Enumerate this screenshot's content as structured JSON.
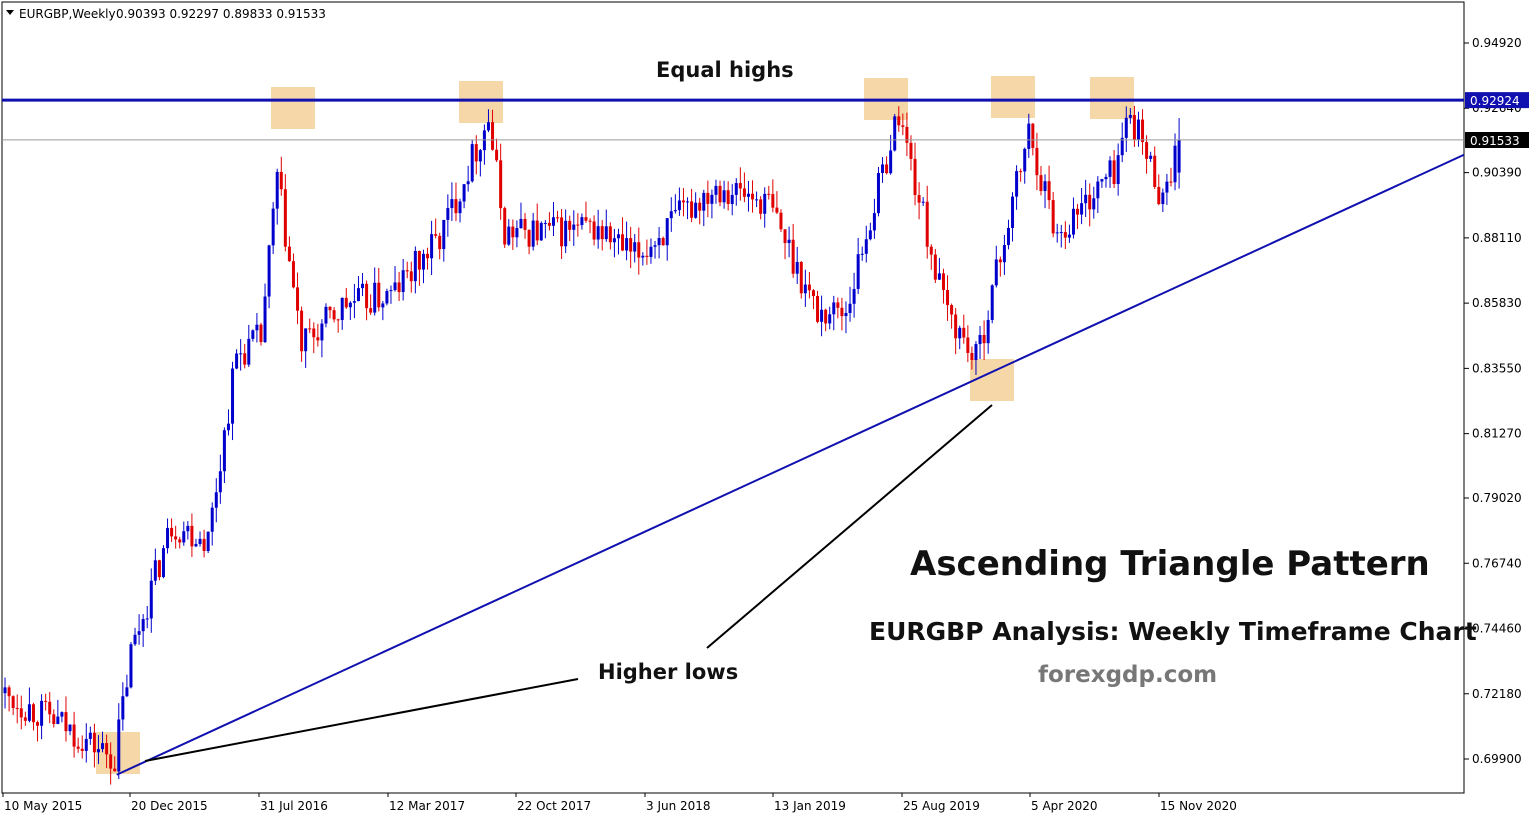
{
  "header": {
    "symbol_timeframe": "EURGBP,Weekly",
    "ohlc": "0.90393 0.92297 0.89833 0.91533"
  },
  "price_axis": {
    "ticks": [
      "0.94920",
      "0.92640",
      "0.90390",
      "0.88110",
      "0.85830",
      "0.83550",
      "0.81270",
      "0.79020",
      "0.76740",
      "0.74460",
      "0.72180",
      "0.69900"
    ],
    "resistance_label": "0.92924",
    "current_price_label": "0.91533"
  },
  "time_axis": {
    "ticks": [
      "10 May 2015",
      "20 Dec 2015",
      "31 Jul 2016",
      "12 Mar 2017",
      "22 Oct 2017",
      "3 Jun 2018",
      "13 Jan 2019",
      "25 Aug 2019",
      "5 Apr 2020",
      "15 Nov 2020"
    ]
  },
  "annotations": {
    "equal_highs": "Equal highs",
    "higher_lows": "Higher lows",
    "title": "Ascending Triangle Pattern",
    "subtitle": "EURGBP Analysis: Weekly Timeframe Chart",
    "site": "forexgdp.com"
  },
  "colors": {
    "bull": "#0000cc",
    "bear": "#e00000",
    "line": "#1010b0",
    "highlight": "#f6d7a7",
    "site": "#777777"
  },
  "chart_data": {
    "type": "candlestick",
    "symbol": "EURGBP",
    "timeframe": "Weekly",
    "last_bar": {
      "open": 0.90393,
      "high": 0.92297,
      "low": 0.89833,
      "close": 0.91533
    },
    "resistance": 0.92924,
    "current_price": 0.91533,
    "support_trendline": [
      {
        "date": "2015-11-22",
        "price": 0.6935
      },
      {
        "date": "2019-12-15",
        "price": 0.832
      }
    ],
    "ylim": [
      0.685,
      0.958
    ],
    "xlim": [
      "2015-05-10",
      "2021-03-15"
    ],
    "close_series": [
      {
        "date": "2015-05-10",
        "close": 0.722
      },
      {
        "date": "2015-08-23",
        "close": 0.711
      },
      {
        "date": "2015-11-22",
        "close": 0.699
      },
      {
        "date": "2015-12-20",
        "close": 0.736
      },
      {
        "date": "2016-02-28",
        "close": 0.781
      },
      {
        "date": "2016-05-01",
        "close": 0.776
      },
      {
        "date": "2016-06-19",
        "close": 0.84
      },
      {
        "date": "2016-07-31",
        "close": 0.846
      },
      {
        "date": "2016-08-28",
        "close": 0.902
      },
      {
        "date": "2016-10-09",
        "close": 0.843
      },
      {
        "date": "2016-12-25",
        "close": 0.858
      },
      {
        "date": "2017-03-12",
        "close": 0.861
      },
      {
        "date": "2017-06-04",
        "close": 0.881
      },
      {
        "date": "2017-08-27",
        "close": 0.923
      },
      {
        "date": "2017-09-24",
        "close": 0.883
      },
      {
        "date": "2018-03-04",
        "close": 0.884
      },
      {
        "date": "2018-05-06",
        "close": 0.874
      },
      {
        "date": "2018-09-23",
        "close": 0.9
      },
      {
        "date": "2018-12-23",
        "close": 0.893
      },
      {
        "date": "2019-03-17",
        "close": 0.855
      },
      {
        "date": "2019-05-05",
        "close": 0.856
      },
      {
        "date": "2019-08-04",
        "close": 0.925
      },
      {
        "date": "2019-10-20",
        "close": 0.858
      },
      {
        "date": "2019-12-15",
        "close": 0.838
      },
      {
        "date": "2020-03-15",
        "close": 0.918
      },
      {
        "date": "2020-05-03",
        "close": 0.882
      },
      {
        "date": "2020-08-09",
        "close": 0.905
      },
      {
        "date": "2020-09-06",
        "close": 0.925
      },
      {
        "date": "2020-11-01",
        "close": 0.895
      },
      {
        "date": "2020-11-29",
        "close": 0.91533
      }
    ]
  }
}
